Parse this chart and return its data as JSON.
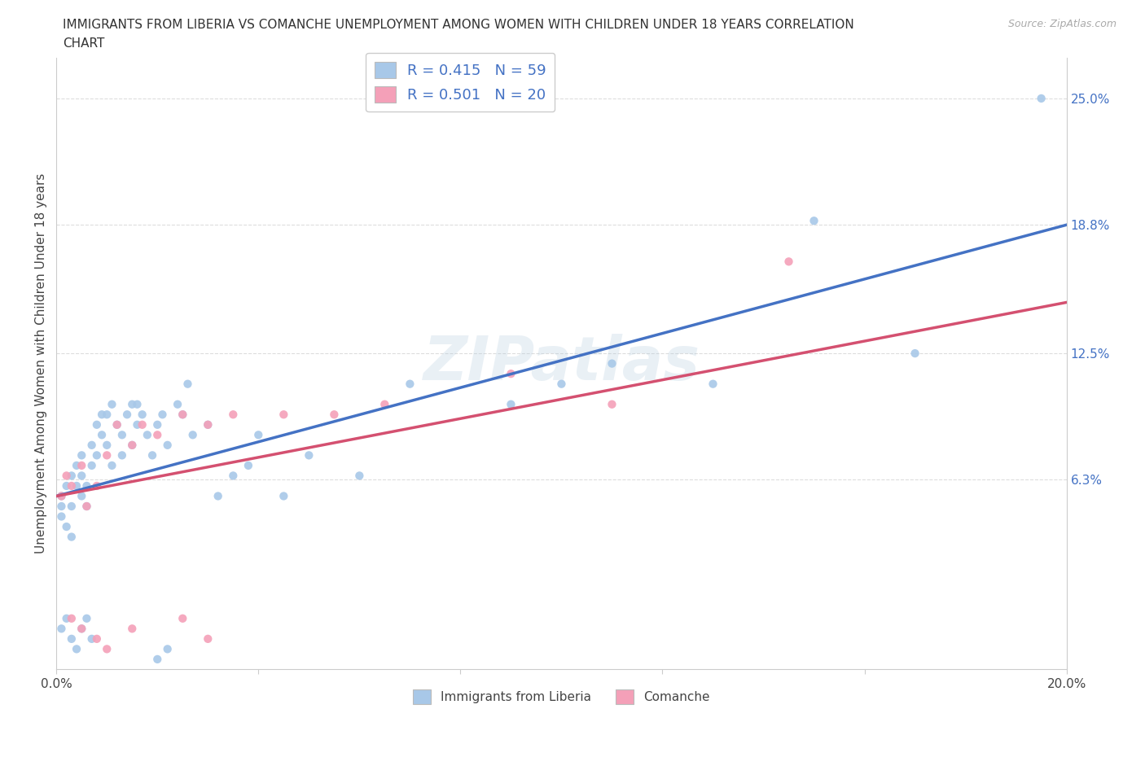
{
  "title_line1": "IMMIGRANTS FROM LIBERIA VS COMANCHE UNEMPLOYMENT AMONG WOMEN WITH CHILDREN UNDER 18 YEARS CORRELATION",
  "title_line2": "CHART",
  "source": "Source: ZipAtlas.com",
  "ylabel": "Unemployment Among Women with Children Under 18 years",
  "xlim": [
    0.0,
    0.2
  ],
  "ylim": [
    -0.03,
    0.27
  ],
  "right_yticks": [
    0.063,
    0.125,
    0.188,
    0.25
  ],
  "right_yticklabels": [
    "6.3%",
    "12.5%",
    "18.8%",
    "25.0%"
  ],
  "legend_r1": "R = 0.415   N = 59",
  "legend_r2": "R = 0.501   N = 20",
  "color_liberia": "#a8c8e8",
  "color_comanche": "#f4a0b8",
  "color_line_liberia": "#4472c4",
  "color_line_comanche": "#d45070",
  "watermark": "ZIPatlas",
  "liberia_x": [
    0.001,
    0.001,
    0.001,
    0.002,
    0.002,
    0.003,
    0.003,
    0.003,
    0.004,
    0.004,
    0.005,
    0.005,
    0.005,
    0.006,
    0.006,
    0.007,
    0.007,
    0.008,
    0.008,
    0.009,
    0.009,
    0.01,
    0.01,
    0.011,
    0.011,
    0.012,
    0.013,
    0.013,
    0.014,
    0.015,
    0.015,
    0.016,
    0.016,
    0.017,
    0.018,
    0.019,
    0.02,
    0.021,
    0.022,
    0.024,
    0.025,
    0.026,
    0.027,
    0.03,
    0.032,
    0.035,
    0.038,
    0.04,
    0.045,
    0.05,
    0.06,
    0.07,
    0.09,
    0.1,
    0.11,
    0.13,
    0.15,
    0.17,
    0.195
  ],
  "liberia_y": [
    0.055,
    0.045,
    0.05,
    0.06,
    0.04,
    0.065,
    0.05,
    0.035,
    0.06,
    0.07,
    0.055,
    0.065,
    0.075,
    0.05,
    0.06,
    0.08,
    0.07,
    0.09,
    0.075,
    0.085,
    0.095,
    0.095,
    0.08,
    0.1,
    0.07,
    0.09,
    0.075,
    0.085,
    0.095,
    0.1,
    0.08,
    0.09,
    0.1,
    0.095,
    0.085,
    0.075,
    0.09,
    0.095,
    0.08,
    0.1,
    0.095,
    0.11,
    0.085,
    0.09,
    0.055,
    0.065,
    0.07,
    0.085,
    0.055,
    0.075,
    0.065,
    0.11,
    0.1,
    0.11,
    0.12,
    0.11,
    0.19,
    0.125,
    0.25
  ],
  "liberia_y_outliers_x": [
    0.001,
    0.002,
    0.003,
    0.004,
    0.005,
    0.006,
    0.007,
    0.02,
    0.022
  ],
  "liberia_y_outliers_y": [
    -0.01,
    -0.005,
    -0.015,
    -0.02,
    -0.01,
    -0.005,
    -0.015,
    -0.025,
    -0.02
  ],
  "comanche_x": [
    0.001,
    0.002,
    0.003,
    0.005,
    0.006,
    0.008,
    0.01,
    0.012,
    0.015,
    0.017,
    0.02,
    0.025,
    0.03,
    0.035,
    0.045,
    0.055,
    0.065,
    0.09,
    0.11,
    0.145
  ],
  "comanche_y": [
    0.055,
    0.065,
    0.06,
    0.07,
    0.05,
    0.06,
    0.075,
    0.09,
    0.08,
    0.09,
    0.085,
    0.095,
    0.09,
    0.095,
    0.095,
    0.095,
    0.1,
    0.115,
    0.1,
    0.17
  ],
  "comanche_outliers_x": [
    0.003,
    0.005,
    0.008,
    0.01,
    0.015,
    0.025,
    0.03
  ],
  "comanche_outliers_y": [
    -0.005,
    -0.01,
    -0.015,
    -0.02,
    -0.01,
    -0.005,
    -0.015
  ]
}
